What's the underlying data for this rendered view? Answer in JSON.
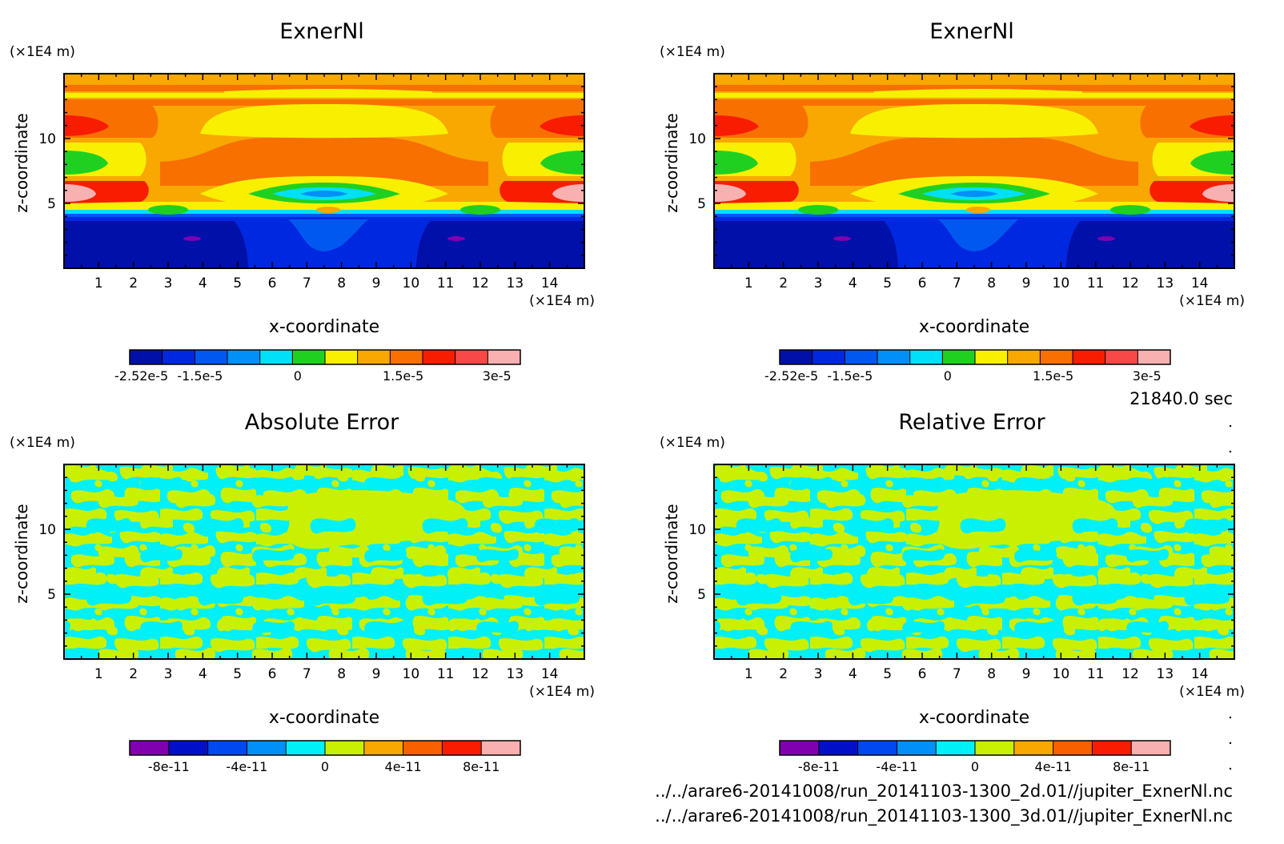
{
  "time_label": "21840.0 sec",
  "files": [
    "../../arare6-20141008/run_20141103-1300_2d.01//jupiter_ExnerNl.nc",
    "../../arare6-20141008/run_20141103-1300_3d.01//jupiter_ExnerNl.nc"
  ],
  "chart_data": [
    {
      "type": "heatmap",
      "title": "ExnerNl",
      "xlabel": "x-coordinate",
      "ylabel": "z-coordinate",
      "x_unit": "(×1E4 m)",
      "y_unit": "(×1E4 m)",
      "xlim": [
        0,
        15
      ],
      "ylim": [
        0,
        15
      ],
      "x_ticks": [
        1,
        2,
        3,
        4,
        5,
        6,
        7,
        8,
        9,
        10,
        11,
        12,
        13,
        14
      ],
      "y_ticks": [
        5,
        10
      ],
      "colorbar_ticks": [
        "-2.52e-5",
        "-1.5e-5",
        "0",
        "1.5e-5",
        "3e-5"
      ],
      "colorbar_colors": [
        "#0010a8",
        "#0028e0",
        "#0058f0",
        "#0090f8",
        "#00e0f8",
        "#20d020",
        "#f8f000",
        "#f8a800",
        "#f87000",
        "#f81c00",
        "#f84848",
        "#f8b0b0"
      ]
    },
    {
      "type": "heatmap",
      "title": "ExnerNl",
      "xlabel": "x-coordinate",
      "ylabel": "z-coordinate",
      "x_unit": "(×1E4 m)",
      "y_unit": "(×1E4 m)",
      "xlim": [
        0,
        15
      ],
      "ylim": [
        0,
        15
      ],
      "x_ticks": [
        1,
        2,
        3,
        4,
        5,
        6,
        7,
        8,
        9,
        10,
        11,
        12,
        13,
        14
      ],
      "y_ticks": [
        5,
        10
      ],
      "colorbar_ticks": [
        "-2.52e-5",
        "-1.5e-5",
        "0",
        "1.5e-5",
        "3e-5"
      ],
      "colorbar_colors": [
        "#0010a8",
        "#0028e0",
        "#0058f0",
        "#0090f8",
        "#00e0f8",
        "#20d020",
        "#f8f000",
        "#f8a800",
        "#f87000",
        "#f81c00",
        "#f84848",
        "#f8b0b0"
      ]
    },
    {
      "type": "heatmap",
      "title": "Absolute Error",
      "xlabel": "x-coordinate",
      "ylabel": "z-coordinate",
      "x_unit": "(×1E4 m)",
      "y_unit": "(×1E4 m)",
      "xlim": [
        0,
        15
      ],
      "ylim": [
        0,
        15
      ],
      "x_ticks": [
        1,
        2,
        3,
        4,
        5,
        6,
        7,
        8,
        9,
        10,
        11,
        12,
        13,
        14
      ],
      "y_ticks": [
        5,
        10
      ],
      "colorbar_ticks": [
        "-8e-11",
        "-4e-11",
        "0",
        "4e-11",
        "8e-11"
      ],
      "colorbar_colors": [
        "#8000b0",
        "#0010c8",
        "#0048f0",
        "#0090f8",
        "#00f0f8",
        "#c8f000",
        "#f8a800",
        "#f86000",
        "#f81c00",
        "#f8b0b0"
      ]
    },
    {
      "type": "heatmap",
      "title": "Relative Error",
      "xlabel": "x-coordinate",
      "ylabel": "z-coordinate",
      "x_unit": "(×1E4 m)",
      "y_unit": "(×1E4 m)",
      "xlim": [
        0,
        15
      ],
      "ylim": [
        0,
        15
      ],
      "x_ticks": [
        1,
        2,
        3,
        4,
        5,
        6,
        7,
        8,
        9,
        10,
        11,
        12,
        13,
        14
      ],
      "y_ticks": [
        5,
        10
      ],
      "colorbar_ticks": [
        "-8e-11",
        "-4e-11",
        "0",
        "4e-11",
        "8e-11"
      ],
      "colorbar_colors": [
        "#8000b0",
        "#0010c8",
        "#0048f0",
        "#0090f8",
        "#00f0f8",
        "#c8f000",
        "#f8a800",
        "#f86000",
        "#f81c00",
        "#f8b0b0"
      ]
    }
  ]
}
